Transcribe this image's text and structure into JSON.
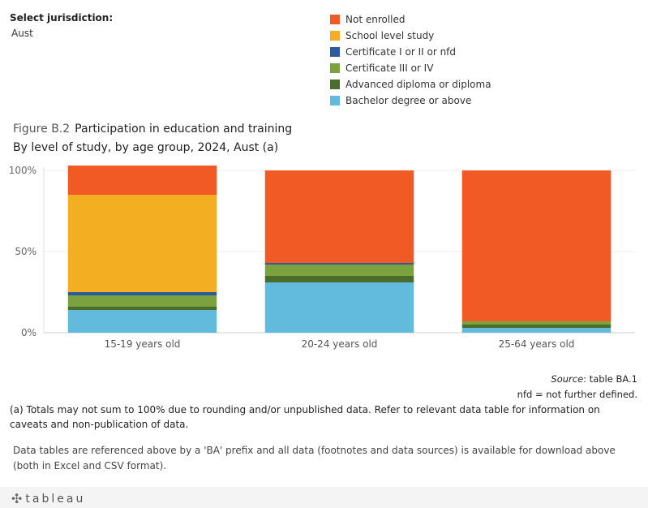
{
  "filter": {
    "label": "Select jurisdiction:",
    "value": "Aust"
  },
  "legend": [
    {
      "name": "Not enrolled",
      "color": "#F15A24"
    },
    {
      "name": "School level study",
      "color": "#F3AE22"
    },
    {
      "name": "Certificate I or II or nfd",
      "color": "#2B5C9E"
    },
    {
      "name": "Certificate III or IV",
      "color": "#7BA23F"
    },
    {
      "name": "Advanced diploma or diploma",
      "color": "#4A6D2C"
    },
    {
      "name": "Bachelor degree or above",
      "color": "#62BBDD"
    }
  ],
  "figure": {
    "number": "Figure B.2",
    "title": "Participation in education and training",
    "subtitle": "By level of study, by age group, 2024, Aust (a)"
  },
  "chart_data": {
    "type": "bar",
    "stacked": true,
    "categories": [
      "15-19 years old",
      "20-24 years old",
      "25-64 years old"
    ],
    "series": [
      {
        "name": "Bachelor degree or above",
        "color": "#62BBDD",
        "values": [
          14,
          31,
          3
        ]
      },
      {
        "name": "Advanced diploma or diploma",
        "color": "#4A6D2C",
        "values": [
          2,
          4,
          2
        ]
      },
      {
        "name": "Certificate III or IV",
        "color": "#7BA23F",
        "values": [
          7,
          7,
          2
        ]
      },
      {
        "name": "Certificate I or II or nfd",
        "color": "#2B5C9E",
        "values": [
          2,
          1,
          0
        ]
      },
      {
        "name": "School level study",
        "color": "#F3AE22",
        "values": [
          60,
          0,
          0
        ]
      },
      {
        "name": "Not enrolled",
        "color": "#F15A24",
        "values": [
          18,
          57,
          93
        ]
      }
    ],
    "yticks": [
      "100%",
      "50%",
      "0%"
    ],
    "ylim": [
      0,
      100
    ]
  },
  "source": {
    "label": "Source",
    "text": ": table BA.1"
  },
  "nfd_note": "nfd = not further defined.",
  "footnote": "(a) Totals may not sum to 100% due to rounding and/or unpublished data. Refer to relevant data table for information on caveats and non-publication of data.",
  "data_note": "Data tables are referenced above by a 'BA' prefix and all data (footnotes and data sources) is available for download above (both in Excel and CSV format).",
  "footer": {
    "logo_text": "tableau"
  }
}
